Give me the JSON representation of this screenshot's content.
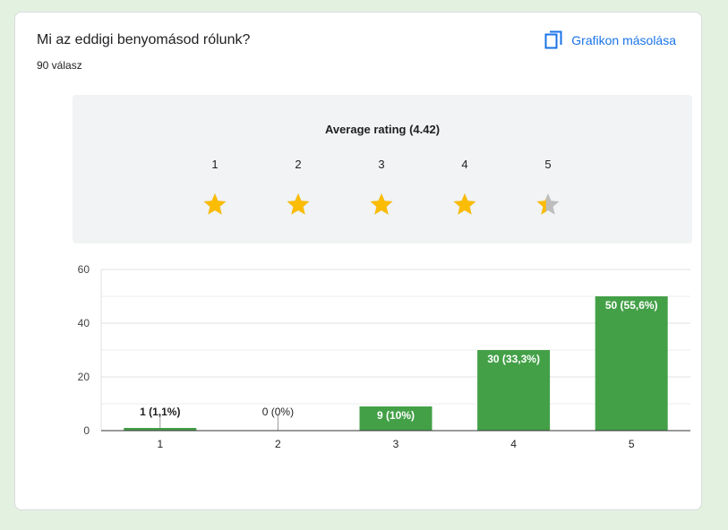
{
  "question": {
    "title": "Mi az eddigi benyomásod rólunk?",
    "responses": "90 válasz"
  },
  "toolbar": {
    "copy_label": "Grafikon másolása",
    "copy_icon": "copy-icon"
  },
  "rating_summary": {
    "title": "Average rating (4.42)",
    "average": 4.42,
    "scale": [
      "1",
      "2",
      "3",
      "4",
      "5"
    ],
    "star_color": "#fbbc04",
    "star_empty_color": "#bdbdbd"
  },
  "colors": {
    "bar": "#43a047",
    "accent": "#1a73e8",
    "background": "#e3f1e1"
  },
  "chart_data": {
    "type": "bar",
    "categories": [
      "1",
      "2",
      "3",
      "4",
      "5"
    ],
    "values": [
      1,
      0,
      9,
      30,
      50
    ],
    "data_labels": [
      "1 (1,1%)",
      "0 (0%)",
      "9 (10%)",
      "30 (33,3%)",
      "50 (55,6%)"
    ],
    "ylim": [
      0,
      60
    ],
    "yticks": [
      0,
      20,
      40,
      60
    ],
    "grid": true,
    "xlabel": "",
    "ylabel": ""
  }
}
